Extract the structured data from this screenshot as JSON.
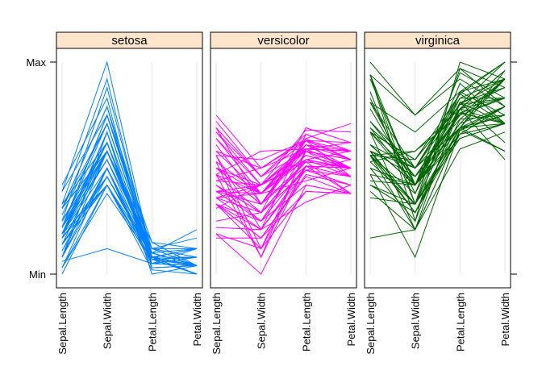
{
  "chart_data": {
    "type": "line",
    "subtype": "parallel-coordinates",
    "variables": [
      "Sepal.Length",
      "Sepal.Width",
      "Petal.Length",
      "Petal.Width"
    ],
    "y_axis_labels": [
      "Min",
      "Max"
    ],
    "ylim": [
      0,
      1
    ],
    "grid": false,
    "legend": "none",
    "panels": [
      {
        "name": "setosa",
        "color": "#0080ff",
        "lines": [
          [
            0.22,
            0.62,
            0.07,
            0.04
          ],
          [
            0.17,
            0.42,
            0.07,
            0.04
          ],
          [
            0.11,
            0.5,
            0.05,
            0.04
          ],
          [
            0.08,
            0.46,
            0.08,
            0.04
          ],
          [
            0.19,
            0.67,
            0.07,
            0.04
          ],
          [
            0.31,
            0.79,
            0.12,
            0.12
          ],
          [
            0.08,
            0.58,
            0.07,
            0.08
          ],
          [
            0.19,
            0.58,
            0.08,
            0.04
          ],
          [
            0.03,
            0.38,
            0.07,
            0.04
          ],
          [
            0.17,
            0.46,
            0.08,
            0.0
          ],
          [
            0.31,
            0.71,
            0.08,
            0.04
          ],
          [
            0.14,
            0.58,
            0.1,
            0.04
          ],
          [
            0.14,
            0.42,
            0.07,
            0.0
          ],
          [
            0.0,
            0.42,
            0.02,
            0.0
          ],
          [
            0.42,
            0.83,
            0.03,
            0.04
          ],
          [
            0.39,
            1.0,
            0.08,
            0.12
          ],
          [
            0.31,
            0.79,
            0.05,
            0.12
          ],
          [
            0.22,
            0.62,
            0.07,
            0.08
          ],
          [
            0.39,
            0.75,
            0.12,
            0.08
          ],
          [
            0.22,
            0.75,
            0.08,
            0.08
          ],
          [
            0.31,
            0.58,
            0.12,
            0.04
          ],
          [
            0.22,
            0.71,
            0.08,
            0.12
          ],
          [
            0.08,
            0.67,
            0.0,
            0.04
          ],
          [
            0.22,
            0.54,
            0.12,
            0.17
          ],
          [
            0.14,
            0.58,
            0.15,
            0.04
          ],
          [
            0.19,
            0.42,
            0.1,
            0.04
          ],
          [
            0.19,
            0.58,
            0.1,
            0.12
          ],
          [
            0.25,
            0.62,
            0.08,
            0.04
          ],
          [
            0.25,
            0.58,
            0.07,
            0.04
          ],
          [
            0.11,
            0.5,
            0.1,
            0.04
          ],
          [
            0.14,
            0.46,
            0.1,
            0.04
          ],
          [
            0.31,
            0.58,
            0.08,
            0.12
          ],
          [
            0.25,
            0.88,
            0.08,
            0.0
          ],
          [
            0.33,
            0.92,
            0.07,
            0.04
          ],
          [
            0.17,
            0.46,
            0.08,
            0.0
          ],
          [
            0.19,
            0.5,
            0.03,
            0.04
          ],
          [
            0.33,
            0.62,
            0.05,
            0.04
          ],
          [
            0.17,
            0.67,
            0.07,
            0.0
          ],
          [
            0.03,
            0.42,
            0.05,
            0.04
          ],
          [
            0.22,
            0.58,
            0.08,
            0.04
          ],
          [
            0.19,
            0.62,
            0.05,
            0.08
          ],
          [
            0.06,
            0.12,
            0.05,
            0.08
          ],
          [
            0.03,
            0.5,
            0.05,
            0.04
          ],
          [
            0.19,
            0.62,
            0.1,
            0.21
          ],
          [
            0.22,
            0.75,
            0.15,
            0.12
          ],
          [
            0.14,
            0.42,
            0.07,
            0.08
          ],
          [
            0.22,
            0.75,
            0.1,
            0.04
          ],
          [
            0.08,
            0.5,
            0.07,
            0.04
          ],
          [
            0.28,
            0.71,
            0.08,
            0.04
          ],
          [
            0.19,
            0.54,
            0.07,
            0.04
          ]
        ]
      },
      {
        "name": "versicolor",
        "color": "#ff00ff",
        "lines": [
          [
            0.75,
            0.5,
            0.63,
            0.54
          ],
          [
            0.58,
            0.5,
            0.59,
            0.58
          ],
          [
            0.72,
            0.46,
            0.66,
            0.58
          ],
          [
            0.33,
            0.12,
            0.51,
            0.5
          ],
          [
            0.61,
            0.33,
            0.61,
            0.58
          ],
          [
            0.39,
            0.33,
            0.59,
            0.5
          ],
          [
            0.56,
            0.54,
            0.63,
            0.62
          ],
          [
            0.17,
            0.17,
            0.39,
            0.38
          ],
          [
            0.64,
            0.38,
            0.61,
            0.5
          ],
          [
            0.25,
            0.29,
            0.49,
            0.54
          ],
          [
            0.19,
            0.0,
            0.42,
            0.38
          ],
          [
            0.44,
            0.42,
            0.54,
            0.58
          ],
          [
            0.47,
            0.08,
            0.51,
            0.38
          ],
          [
            0.5,
            0.38,
            0.63,
            0.54
          ],
          [
            0.36,
            0.38,
            0.44,
            0.5
          ],
          [
            0.67,
            0.46,
            0.58,
            0.54
          ],
          [
            0.36,
            0.42,
            0.59,
            0.58
          ],
          [
            0.42,
            0.29,
            0.53,
            0.38
          ],
          [
            0.53,
            0.08,
            0.59,
            0.58
          ],
          [
            0.36,
            0.21,
            0.49,
            0.42
          ],
          [
            0.44,
            0.5,
            0.64,
            0.71
          ],
          [
            0.5,
            0.33,
            0.51,
            0.5
          ],
          [
            0.56,
            0.21,
            0.66,
            0.58
          ],
          [
            0.5,
            0.33,
            0.63,
            0.46
          ],
          [
            0.58,
            0.38,
            0.56,
            0.5
          ],
          [
            0.64,
            0.42,
            0.58,
            0.54
          ],
          [
            0.69,
            0.33,
            0.64,
            0.54
          ],
          [
            0.67,
            0.42,
            0.68,
            0.67
          ],
          [
            0.47,
            0.38,
            0.59,
            0.58
          ],
          [
            0.39,
            0.25,
            0.42,
            0.38
          ],
          [
            0.33,
            0.17,
            0.47,
            0.42
          ],
          [
            0.33,
            0.17,
            0.46,
            0.38
          ],
          [
            0.42,
            0.29,
            0.49,
            0.46
          ],
          [
            0.47,
            0.29,
            0.69,
            0.62
          ],
          [
            0.31,
            0.42,
            0.59,
            0.58
          ],
          [
            0.47,
            0.58,
            0.59,
            0.62
          ],
          [
            0.69,
            0.46,
            0.63,
            0.58
          ],
          [
            0.56,
            0.12,
            0.58,
            0.5
          ],
          [
            0.36,
            0.42,
            0.53,
            0.5
          ],
          [
            0.33,
            0.21,
            0.51,
            0.5
          ],
          [
            0.33,
            0.25,
            0.58,
            0.46
          ],
          [
            0.5,
            0.42,
            0.61,
            0.54
          ],
          [
            0.42,
            0.25,
            0.51,
            0.46
          ],
          [
            0.19,
            0.12,
            0.39,
            0.38
          ],
          [
            0.36,
            0.29,
            0.54,
            0.5
          ],
          [
            0.39,
            0.42,
            0.54,
            0.46
          ],
          [
            0.39,
            0.38,
            0.54,
            0.5
          ],
          [
            0.53,
            0.38,
            0.56,
            0.5
          ],
          [
            0.22,
            0.21,
            0.34,
            0.42
          ],
          [
            0.39,
            0.33,
            0.53,
            0.5
          ]
        ]
      },
      {
        "name": "virginica",
        "color": "#006400",
        "lines": [
          [
            0.56,
            0.54,
            0.85,
            1.0
          ],
          [
            0.42,
            0.29,
            0.69,
            0.75
          ],
          [
            0.78,
            0.42,
            0.83,
            0.83
          ],
          [
            0.56,
            0.38,
            0.78,
            0.71
          ],
          [
            0.61,
            0.42,
            0.81,
            0.88
          ],
          [
            0.92,
            0.42,
            0.95,
            0.83
          ],
          [
            0.17,
            0.21,
            0.59,
            0.67
          ],
          [
            0.83,
            0.38,
            0.9,
            0.71
          ],
          [
            0.67,
            0.21,
            0.81,
            0.71
          ],
          [
            0.81,
            0.67,
            0.86,
            1.0
          ],
          [
            0.61,
            0.5,
            0.69,
            0.79
          ],
          [
            0.58,
            0.29,
            0.73,
            0.75
          ],
          [
            0.69,
            0.42,
            0.76,
            0.83
          ],
          [
            0.39,
            0.21,
            0.68,
            0.79
          ],
          [
            0.42,
            0.33,
            0.69,
            0.96
          ],
          [
            0.58,
            0.5,
            0.73,
            0.92
          ],
          [
            0.61,
            0.42,
            0.76,
            0.71
          ],
          [
            0.94,
            0.75,
            0.97,
            0.88
          ],
          [
            0.94,
            0.25,
            1.0,
            0.92
          ],
          [
            0.47,
            0.08,
            0.68,
            0.58
          ],
          [
            0.72,
            0.5,
            0.8,
            0.92
          ],
          [
            0.36,
            0.33,
            0.66,
            0.79
          ],
          [
            0.94,
            0.33,
            0.97,
            0.79
          ],
          [
            0.56,
            0.29,
            0.66,
            0.71
          ],
          [
            0.67,
            0.54,
            0.8,
            0.83
          ],
          [
            0.81,
            0.5,
            0.85,
            0.71
          ],
          [
            0.53,
            0.33,
            0.64,
            0.71
          ],
          [
            0.5,
            0.42,
            0.66,
            0.71
          ],
          [
            0.58,
            0.33,
            0.78,
            0.83
          ],
          [
            0.81,
            0.42,
            0.81,
            0.62
          ],
          [
            0.86,
            0.33,
            0.86,
            0.75
          ],
          [
            1.0,
            0.75,
            0.92,
            0.79
          ],
          [
            0.58,
            0.33,
            0.78,
            0.88
          ],
          [
            0.56,
            0.33,
            0.69,
            0.58
          ],
          [
            0.5,
            0.25,
            0.78,
            0.54
          ],
          [
            0.94,
            0.42,
            0.86,
            0.92
          ],
          [
            0.56,
            0.58,
            0.78,
            0.96
          ],
          [
            0.58,
            0.46,
            0.76,
            0.71
          ],
          [
            0.47,
            0.42,
            0.64,
            0.71
          ],
          [
            0.72,
            0.46,
            0.75,
            0.83
          ],
          [
            0.67,
            0.46,
            0.78,
            0.96
          ],
          [
            0.72,
            0.46,
            0.69,
            0.92
          ],
          [
            0.42,
            0.29,
            0.69,
            0.75
          ],
          [
            0.69,
            0.5,
            0.83,
            0.92
          ],
          [
            0.67,
            0.54,
            0.8,
            1.0
          ],
          [
            0.67,
            0.42,
            0.71,
            0.92
          ],
          [
            0.56,
            0.21,
            0.68,
            0.75
          ],
          [
            0.61,
            0.42,
            0.71,
            0.79
          ],
          [
            0.53,
            0.58,
            0.75,
            0.92
          ],
          [
            0.44,
            0.42,
            0.69,
            0.71
          ]
        ]
      }
    ]
  }
}
